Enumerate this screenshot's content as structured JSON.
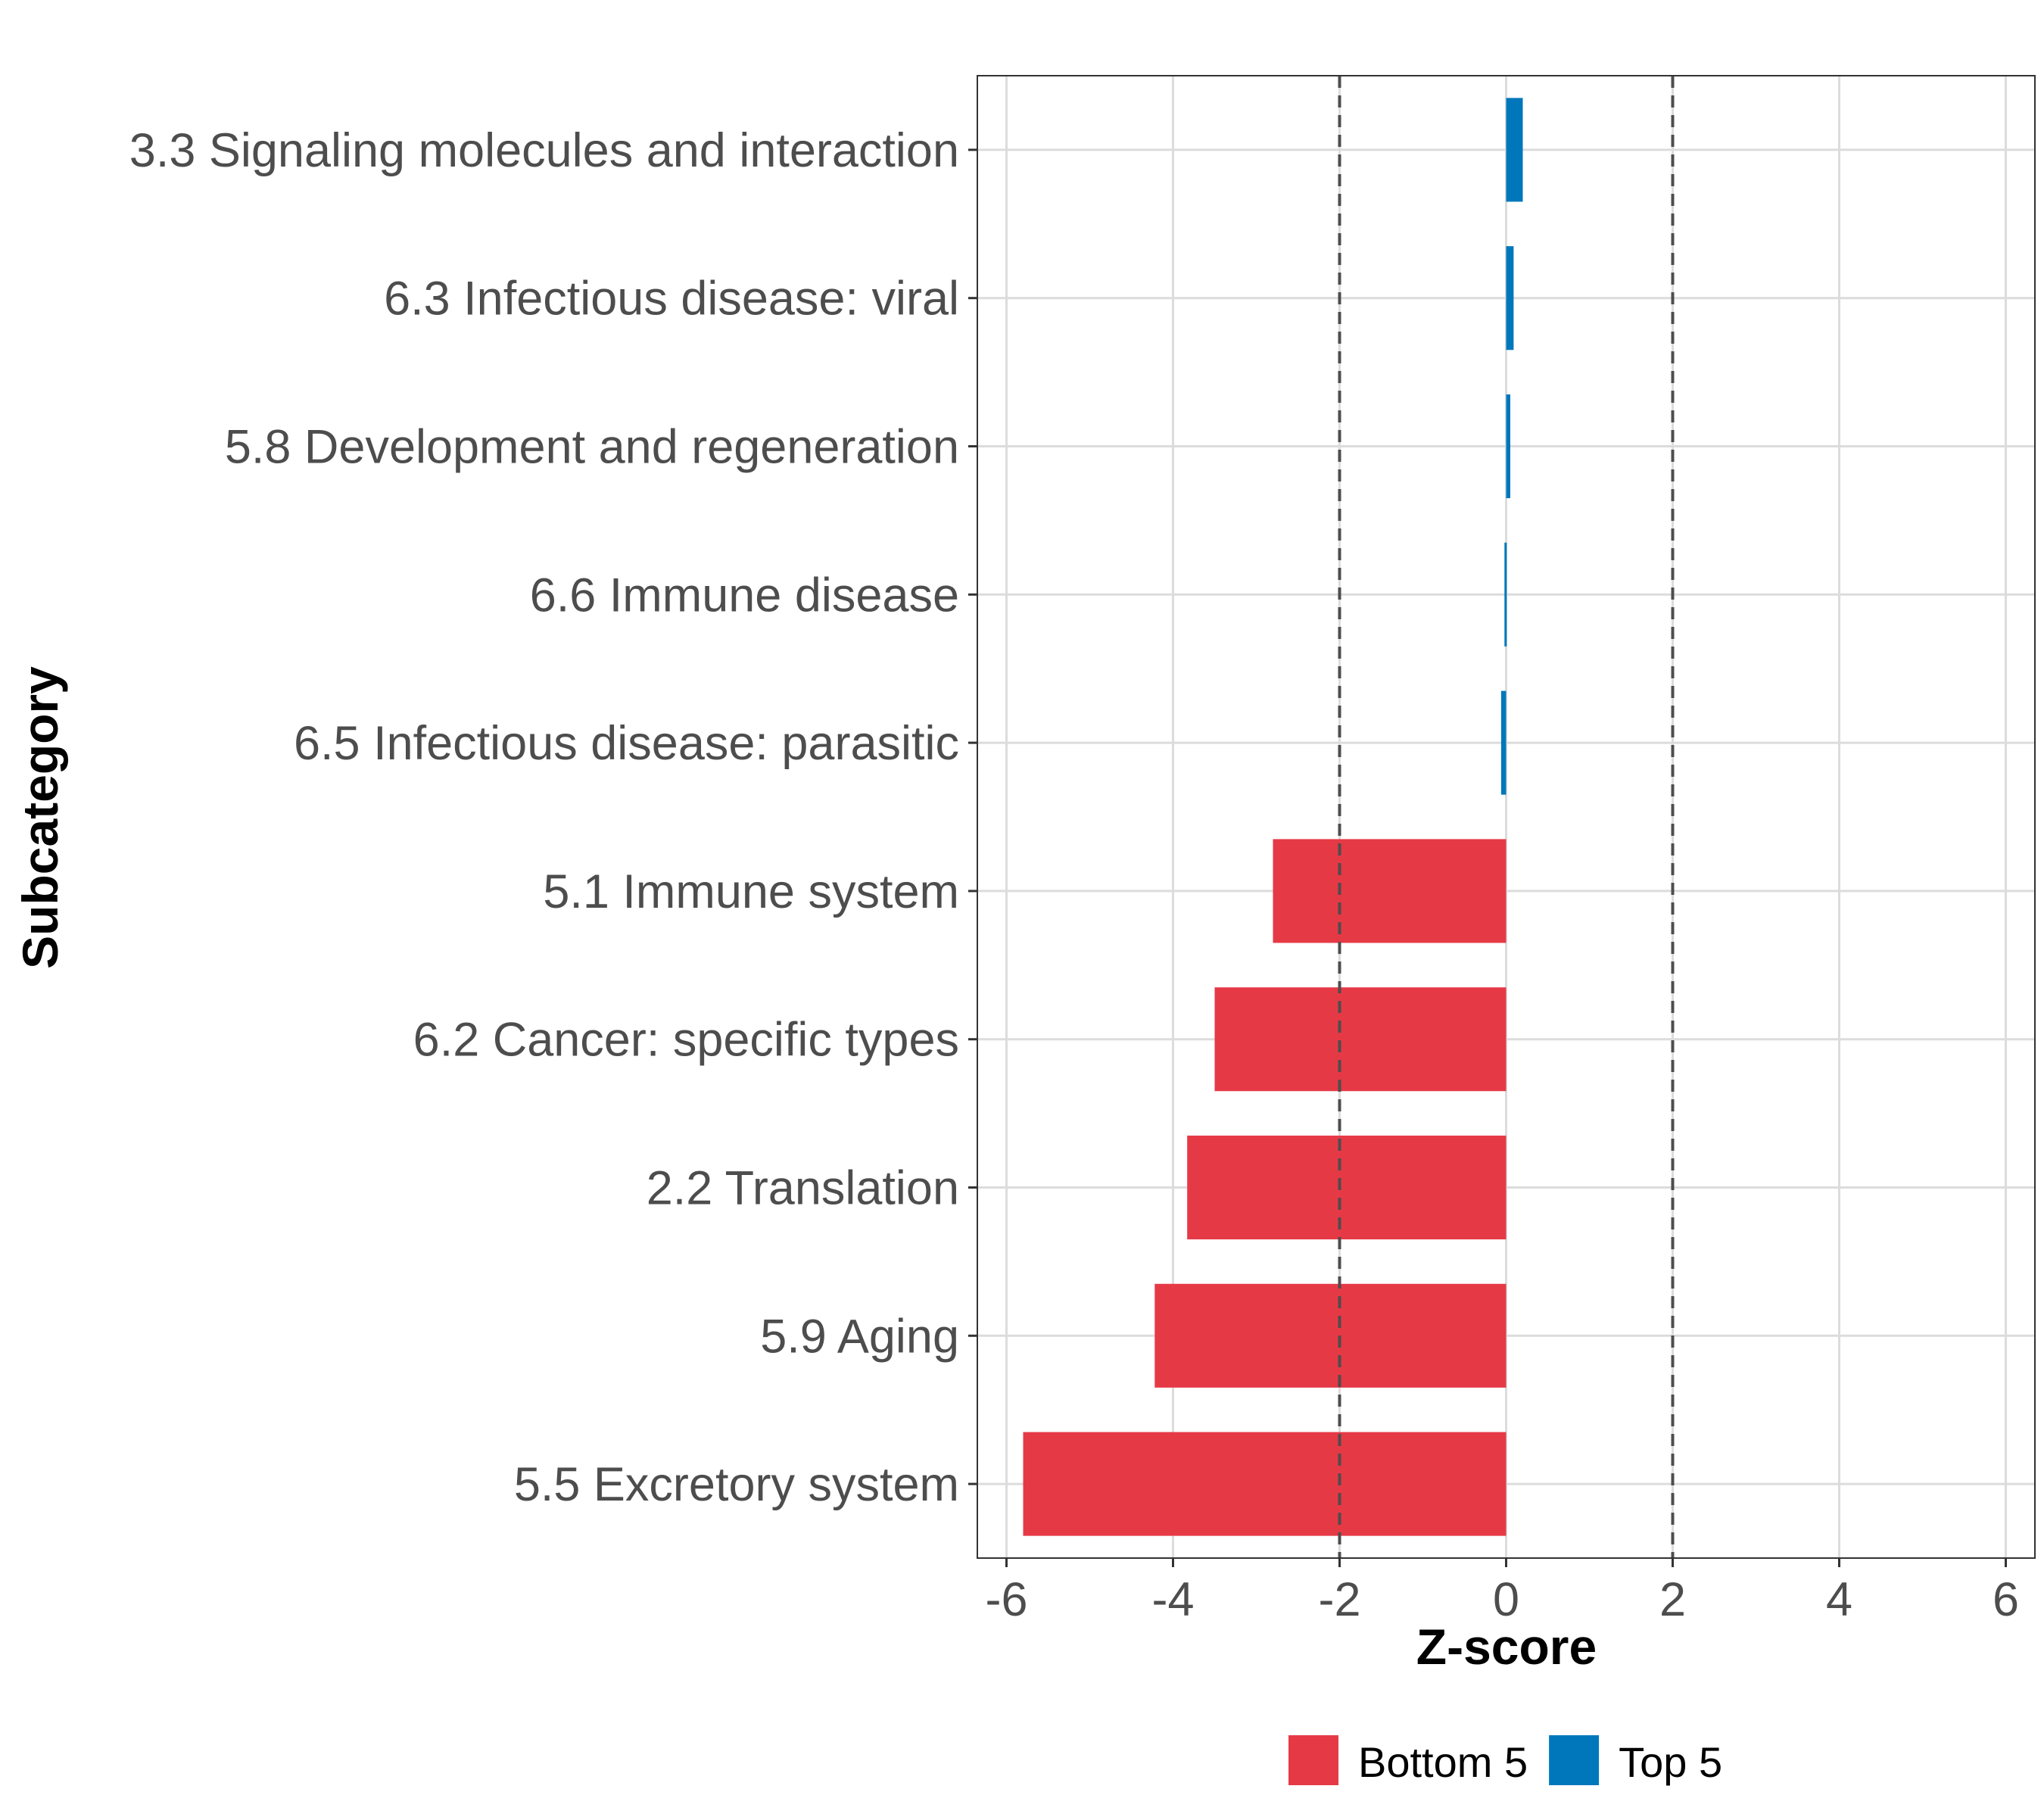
{
  "chart_data": {
    "type": "bar",
    "orientation": "horizontal",
    "title": "",
    "xlabel": "Z-score",
    "ylabel": "Subcategory",
    "xlim": [
      -6.35,
      6.35
    ],
    "x_ticks": [
      -6,
      -4,
      -2,
      0,
      2,
      4,
      6
    ],
    "x_tick_labels": [
      "-6",
      "-4",
      "-2",
      "0",
      "2",
      "4",
      "6"
    ],
    "reference_lines": [
      -2,
      2
    ],
    "grid": true,
    "legend_position": "bottom",
    "categories": [
      "3.3 Signaling molecules and interaction",
      "6.3 Infectious disease: viral",
      "5.8 Development and regeneration",
      "6.6 Immune disease",
      "6.5 Infectious disease: parasitic",
      "5.1 Immune system",
      "6.2 Cancer: specific types",
      "2.2 Translation",
      "5.9 Aging",
      "5.5 Excretory system"
    ],
    "values": [
      0.2,
      0.09,
      0.05,
      -0.02,
      -0.06,
      -2.8,
      -3.5,
      -3.83,
      -4.22,
      -5.8
    ],
    "groups": [
      "Top 5",
      "Top 5",
      "Top 5",
      "Top 5",
      "Top 5",
      "Bottom 5",
      "Bottom 5",
      "Bottom 5",
      "Bottom 5",
      "Bottom 5"
    ],
    "legend": [
      {
        "name": "Bottom 5",
        "color": "#E63946"
      },
      {
        "name": "Top 5",
        "color": "#0077BB"
      }
    ]
  }
}
